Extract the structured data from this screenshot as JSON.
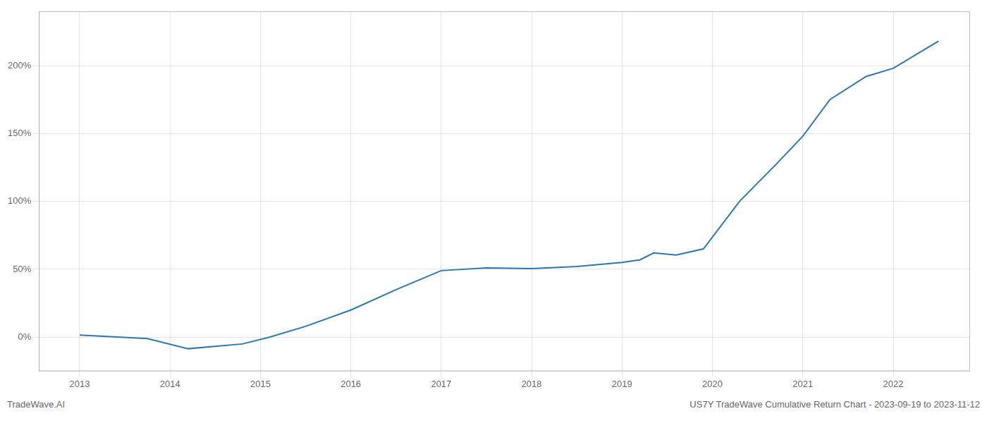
{
  "chart_data": {
    "type": "line",
    "annotations": [
      "TradeWave.AI",
      "US7Y TradeWave Cumulative Return Chart - 2023-09-19 to 2023-11-12"
    ],
    "x": [
      2013.0,
      2013.75,
      2014.2,
      2014.8,
      2015.1,
      2015.5,
      2016.0,
      2016.5,
      2017.0,
      2017.5,
      2018.0,
      2018.5,
      2019.0,
      2019.2,
      2019.35,
      2019.6,
      2019.9,
      2020.3,
      2020.7,
      2021.0,
      2021.3,
      2021.7,
      2022.0,
      2022.5
    ],
    "values": [
      1.5,
      -1.0,
      -8.5,
      -5.0,
      0.0,
      8.0,
      20.0,
      35.0,
      49.0,
      51.0,
      50.5,
      52.0,
      55.0,
      57.0,
      62.0,
      60.5,
      65.0,
      100.0,
      127.0,
      148.0,
      175.0,
      192.0,
      198.0,
      218.0
    ],
    "color": "#2878b5",
    "xlim": [
      2012.55,
      2022.85
    ],
    "xticks": [
      2013,
      2014,
      2015,
      2016,
      2017,
      2018,
      2019,
      2020,
      2021,
      2022
    ],
    "ylim": [
      -25,
      240
    ],
    "yticks": [
      {
        "value": 0,
        "label": "0%"
      },
      {
        "value": 50,
        "label": "50%"
      },
      {
        "value": 100,
        "label": "100%"
      },
      {
        "value": 150,
        "label": "150%"
      },
      {
        "value": 200,
        "label": "200%"
      }
    ],
    "grid": true
  }
}
